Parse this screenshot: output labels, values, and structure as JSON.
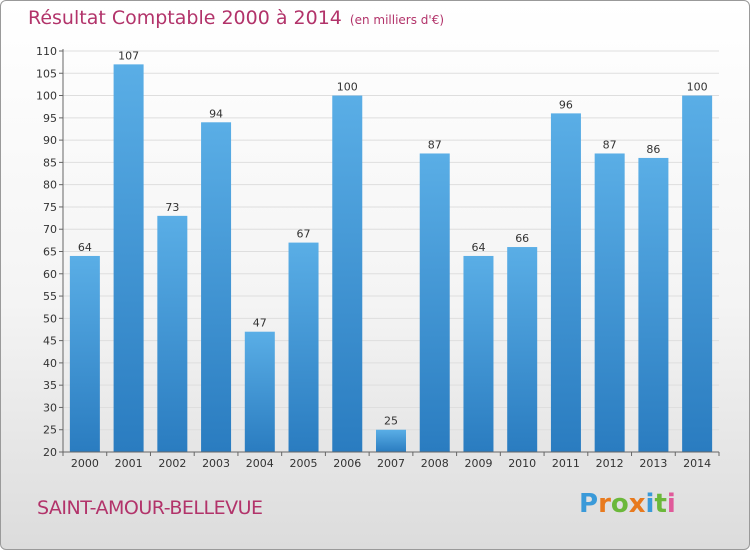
{
  "title": "Résultat Comptable 2000 à 2014",
  "title_unit": "(en milliers d'€)",
  "commune": "SAINT-AMOUR-BELLEVUE",
  "logo": {
    "text": "Proxiti",
    "letters": [
      "P",
      "r",
      "o",
      "x",
      "i",
      "t",
      "i"
    ],
    "colors": [
      "#3a9ad9",
      "#e87a1e",
      "#6bb83a",
      "#e87a1e",
      "#3a9ad9",
      "#6bb83a",
      "#e05a9a"
    ]
  },
  "colors": {
    "title": "#b2336a",
    "bar_light": "#5aaee6",
    "bar_dark": "#2a7cc0"
  },
  "chart_data": {
    "type": "bar",
    "categories": [
      "2000",
      "2001",
      "2002",
      "2003",
      "2004",
      "2005",
      "2006",
      "2007",
      "2008",
      "2009",
      "2010",
      "2011",
      "2012",
      "2013",
      "2014"
    ],
    "values": [
      64,
      107,
      73,
      94,
      47,
      67,
      100,
      25,
      87,
      64,
      66,
      96,
      87,
      86,
      100
    ],
    "ylim": [
      20,
      110
    ],
    "yticks": [
      20,
      25,
      30,
      35,
      40,
      45,
      50,
      55,
      60,
      65,
      70,
      75,
      80,
      85,
      90,
      95,
      100,
      105,
      110
    ],
    "grid": true
  }
}
